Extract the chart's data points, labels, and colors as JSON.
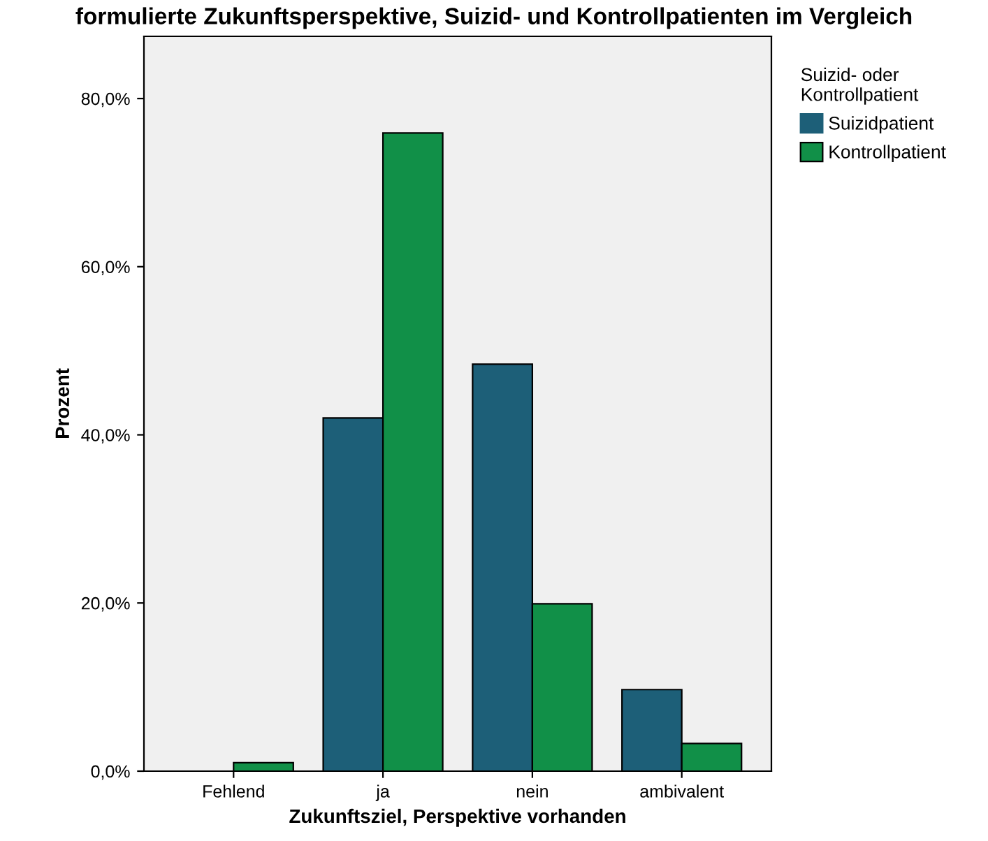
{
  "chart_data": {
    "type": "bar",
    "title": "formulierte Zukunftsperspektive, Suizid- und Kontrollpatienten im Vergleich",
    "xlabel": "Zukunftsziel, Perspektive vorhanden",
    "ylabel": "Prozent",
    "legend_title": "Suizid- oder\nKontrollpatient",
    "categories": [
      "Fehlend",
      "ja",
      "nein",
      "ambivalent"
    ],
    "series": [
      {
        "name": "Suizidpatient",
        "color": "#1d5f78",
        "values": [
          0,
          42.0,
          48.4,
          9.7
        ]
      },
      {
        "name": "Kontrollpatient",
        "color": "#119048",
        "values": [
          1.0,
          75.9,
          19.9,
          3.3
        ]
      }
    ],
    "ylim": [
      0,
      87.4
    ],
    "yticks": [
      {
        "value": 0,
        "label": "0,0%"
      },
      {
        "value": 20,
        "label": "20,0%"
      },
      {
        "value": 40,
        "label": "40,0%"
      },
      {
        "value": 60,
        "label": "60,0%"
      },
      {
        "value": 80,
        "label": "80,0%"
      }
    ],
    "grid": false,
    "legend": "right"
  }
}
